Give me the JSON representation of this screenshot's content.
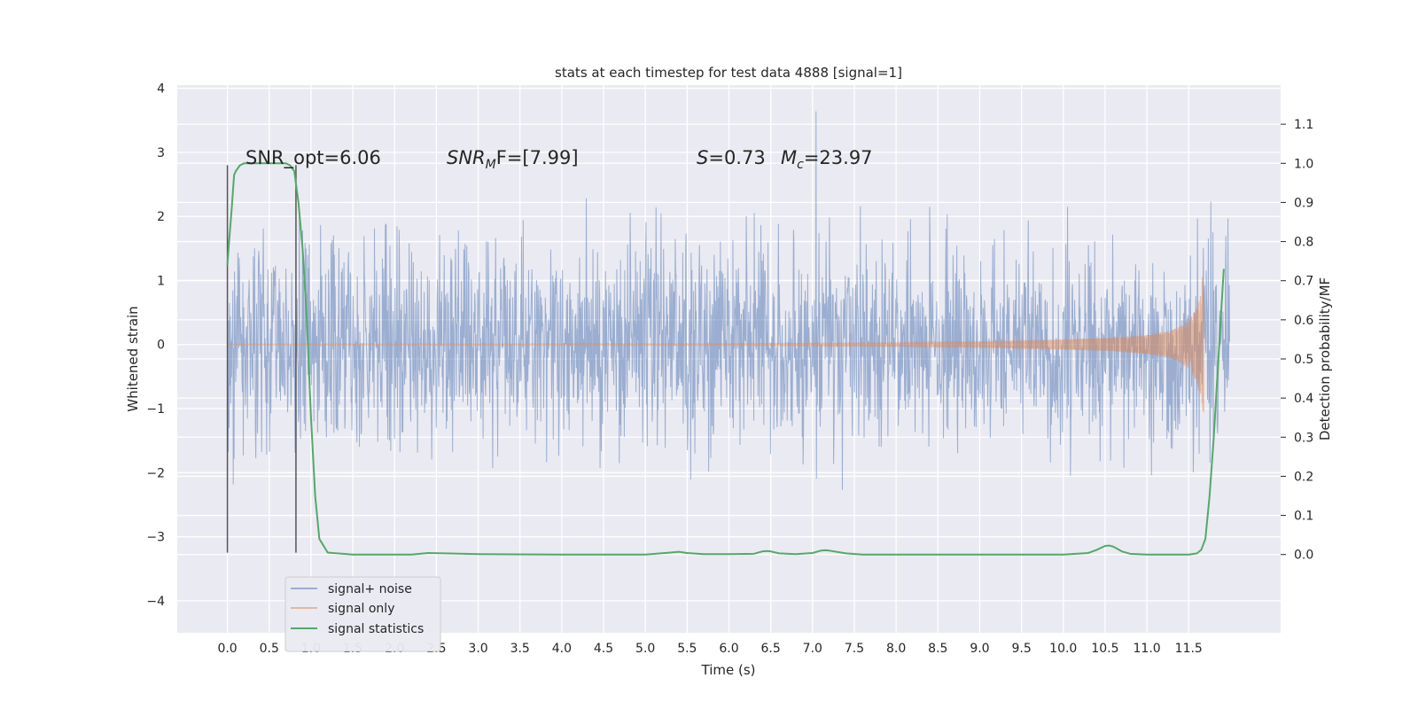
{
  "chart_data": {
    "type": "line",
    "title": "stats at each timestep for test data 4888 [signal=1]",
    "xlabel": "Time (s)",
    "ylabel": "Whitened strain",
    "ylabel_right": "Detection probability/MF",
    "xlim": [
      -0.6,
      12.6
    ],
    "ylim": [
      -4.5,
      4.05
    ],
    "ylim_right": [
      -0.2,
      1.2
    ],
    "x_ticks": [
      "0.0",
      "0.5",
      "1.0",
      "1.5",
      "2.0",
      "2.5",
      "3.0",
      "3.5",
      "4.0",
      "4.5",
      "5.0",
      "5.5",
      "6.0",
      "6.5",
      "7.0",
      "7.5",
      "8.0",
      "8.5",
      "9.0",
      "9.5",
      "10.0",
      "10.5",
      "11.0",
      "11.5"
    ],
    "y_ticks": [
      "4",
      "3",
      "2",
      "1",
      "0",
      "−1",
      "−2",
      "−3",
      "−4"
    ],
    "y_ticks_right": [
      "1.1",
      "1.0",
      "0.9",
      "0.8",
      "0.7",
      "0.6",
      "0.5",
      "0.4",
      "0.3",
      "0.2",
      "0.1",
      "0.0"
    ],
    "grid": true,
    "annotations": {
      "snr_opt": "SNR_opt=6.06",
      "snr_mf_main": "SNR",
      "snr_mf_sub": "M",
      "snr_mf_rest": "F=[7.99]",
      "s_main": "S",
      "s_rest": "=0.73",
      "mc_main": "M",
      "mc_sub": "c",
      "mc_rest": "=23.97"
    },
    "legend": {
      "placement": "lower-left",
      "entries": [
        "signal+ noise",
        "signal only",
        "signal statistics"
      ]
    },
    "series": [
      {
        "name": "signal+ noise",
        "color": "#4c72b0",
        "x_range": [
          0.0,
          11.99
        ],
        "noise_std": 0.8,
        "peak_range": [
          -3.42,
          3.64
        ]
      },
      {
        "name": "signal only",
        "color": "#dd8452",
        "chirp_envelope": {
          "t": [
            0,
            6,
            8,
            9,
            10,
            10.5,
            11,
            11.3,
            11.5,
            11.6,
            11.68
          ],
          "amp": [
            0.01,
            0.015,
            0.03,
            0.05,
            0.08,
            0.1,
            0.15,
            0.22,
            0.37,
            0.6,
            1.2
          ]
        },
        "merger_time": 11.68
      },
      {
        "name": "signal statistics",
        "color": "#55a868",
        "axis": "right",
        "x": [
          0.0,
          0.02,
          0.05,
          0.08,
          0.1,
          0.15,
          0.2,
          0.3,
          0.5,
          0.7,
          0.75,
          0.8,
          0.85,
          0.9,
          0.95,
          1.0,
          1.05,
          1.1,
          1.2,
          1.5,
          2.0,
          2.2,
          2.4,
          2.6,
          3.0,
          4.0,
          5.0,
          5.3,
          5.4,
          5.5,
          5.7,
          6.0,
          6.3,
          6.4,
          6.45,
          6.5,
          6.6,
          6.8,
          7.0,
          7.1,
          7.15,
          7.2,
          7.4,
          7.6,
          8.0,
          9.0,
          10.0,
          10.3,
          10.4,
          10.5,
          10.55,
          10.6,
          10.7,
          10.8,
          11.0,
          11.5,
          11.6,
          11.65,
          11.7,
          11.75,
          11.8,
          11.85,
          11.9,
          11.92
        ],
        "y": [
          0.74,
          0.8,
          0.88,
          0.97,
          0.98,
          0.995,
          1.0,
          1.0,
          1.0,
          1.0,
          0.995,
          0.98,
          0.9,
          0.78,
          0.6,
          0.35,
          0.15,
          0.04,
          0.005,
          0.0,
          0.0,
          0.0,
          0.004,
          0.003,
          0.001,
          0.0,
          0.0,
          0.005,
          0.007,
          0.004,
          0.001,
          0.001,
          0.002,
          0.008,
          0.009,
          0.008,
          0.003,
          0.001,
          0.004,
          0.01,
          0.011,
          0.01,
          0.003,
          0.0,
          0.0,
          0.0,
          0.0,
          0.004,
          0.012,
          0.022,
          0.023,
          0.02,
          0.008,
          0.002,
          0.0,
          0.0,
          0.003,
          0.012,
          0.04,
          0.15,
          0.3,
          0.48,
          0.66,
          0.73
        ]
      }
    ],
    "vertical_markers": [
      {
        "x": 0.0,
        "y_range": [
          -3.25,
          2.8
        ],
        "color": "#555555"
      },
      {
        "x": 0.82,
        "y_range": [
          -3.25,
          2.8
        ],
        "color": "#555555"
      }
    ]
  }
}
